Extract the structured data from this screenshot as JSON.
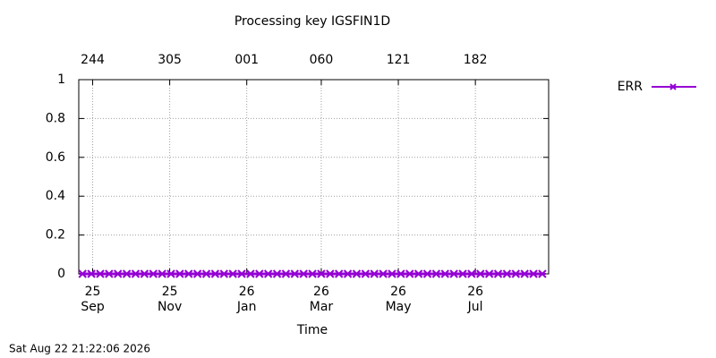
{
  "chart_data": {
    "type": "line",
    "title": "Processing key IGSFIN1D",
    "xlabel": "Time",
    "footer": "Sat Aug 22 21:22:06 2026",
    "xlim": [
      "2025-08-21",
      "2026-08-28"
    ],
    "xticks": [
      {
        "value": "2025-09-01",
        "label": "25\nSep"
      },
      {
        "value": "2025-11-01",
        "label": "25\nNov"
      },
      {
        "value": "2026-01-01",
        "label": "26\nJan"
      },
      {
        "value": "2026-03-01",
        "label": "26\nMar"
      },
      {
        "value": "2026-05-01",
        "label": "26\nMay"
      },
      {
        "value": "2026-07-01",
        "label": "26\nJul"
      }
    ],
    "x2ticks": [
      {
        "value": "2025-09-01",
        "label": "244"
      },
      {
        "value": "2025-11-01",
        "label": "305"
      },
      {
        "value": "2026-01-01",
        "label": "001"
      },
      {
        "value": "2026-03-01",
        "label": "060"
      },
      {
        "value": "2026-05-01",
        "label": "121"
      },
      {
        "value": "2026-07-01",
        "label": "182"
      }
    ],
    "ylim": [
      0,
      1
    ],
    "yticks": [
      0,
      0.2,
      0.4,
      0.6,
      0.8,
      1
    ],
    "grid": true,
    "legend": "outside-top-right",
    "x": [
      "2025-08-24",
      "2025-08-31",
      "2025-09-07",
      "2025-09-14",
      "2025-09-21",
      "2025-09-28",
      "2025-10-05",
      "2025-10-12",
      "2025-10-19",
      "2025-10-26",
      "2025-11-02",
      "2025-11-09",
      "2025-11-16",
      "2025-11-23",
      "2025-11-30",
      "2025-12-07",
      "2025-12-14",
      "2025-12-21",
      "2025-12-28",
      "2026-01-04",
      "2026-01-11",
      "2026-01-18",
      "2026-01-25",
      "2026-02-01",
      "2026-02-08",
      "2026-02-15",
      "2026-02-22",
      "2026-03-01",
      "2026-03-08",
      "2026-03-15",
      "2026-03-22",
      "2026-03-29",
      "2026-04-05",
      "2026-04-12",
      "2026-04-19",
      "2026-04-26",
      "2026-05-03",
      "2026-05-10",
      "2026-05-17",
      "2026-05-24",
      "2026-05-31",
      "2026-06-07",
      "2026-06-14",
      "2026-06-21",
      "2026-06-28",
      "2026-07-05",
      "2026-07-12",
      "2026-07-19",
      "2026-07-26",
      "2026-08-02",
      "2026-08-09",
      "2026-08-16",
      "2026-08-23"
    ],
    "series": [
      {
        "name": "ERR",
        "color": "#9400d3",
        "values": [
          0,
          0,
          0,
          0,
          0,
          0,
          0,
          0,
          0,
          0,
          0,
          0,
          0,
          0,
          0,
          0,
          0,
          0,
          0,
          0,
          0,
          0,
          0,
          0,
          0,
          0,
          0,
          0,
          0,
          0,
          0,
          0,
          0,
          0,
          0,
          0,
          0,
          0,
          0,
          0,
          0,
          0,
          0,
          0,
          0,
          0,
          0,
          0,
          0,
          0,
          0,
          0,
          0
        ]
      }
    ]
  }
}
